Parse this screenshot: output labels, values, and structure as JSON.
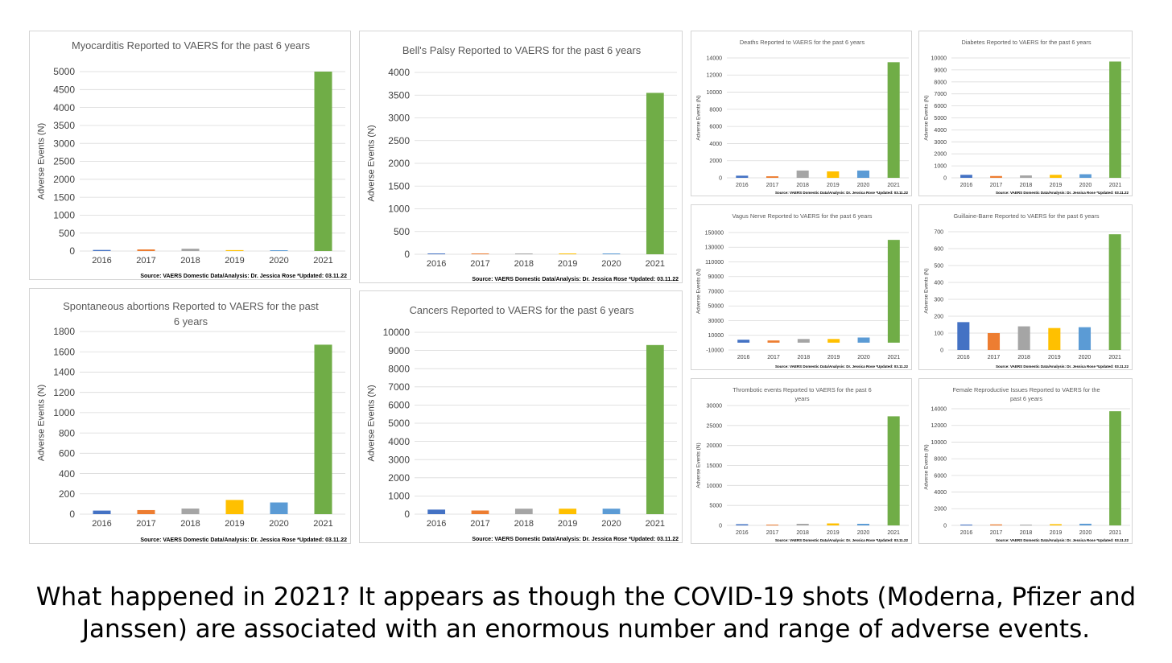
{
  "caption": {
    "line1": "What happened in 2021? It appears as though the COVID-19 shots (Moderna, Pfizer and",
    "line2": "Janssen) are associated with an enormous number and range of adverse events."
  },
  "series_colors": [
    "#4472C4",
    "#ED7D31",
    "#A5A5A5",
    "#FFC000",
    "#5B9BD5",
    "#70AD47"
  ],
  "chart_data": [
    {
      "id": "myocarditis",
      "type": "bar",
      "title_lines": [
        "Myocarditis Reported to VAERS for the past 6 years"
      ],
      "ylabel": "Adverse Events (N)",
      "categories": [
        "2016",
        "2017",
        "2018",
        "2019",
        "2020",
        "2021"
      ],
      "values": [
        30,
        45,
        65,
        25,
        20,
        5000
      ],
      "ylim": [
        0,
        5000
      ],
      "yticks": [
        0,
        500,
        1000,
        1500,
        2000,
        2500,
        3000,
        3500,
        4000,
        4500,
        5000
      ],
      "grid": true,
      "source": "Source: VAERS Domestic Data/Analysis: Dr. Jessica Rose *Updated: 03.11.22"
    },
    {
      "id": "bells-palsy",
      "type": "bar",
      "title_lines": [
        "Bell's Palsy Reported to VAERS for the past 6 years"
      ],
      "ylabel": "Adverse Events (N)",
      "categories": [
        "2016",
        "2017",
        "2018",
        "2019",
        "2020",
        "2021"
      ],
      "values": [
        2,
        2,
        2,
        2,
        5,
        3550
      ],
      "ylim": [
        0,
        4000
      ],
      "yticks": [
        0,
        500,
        1000,
        1500,
        2000,
        2500,
        3000,
        3500,
        4000
      ],
      "grid": true,
      "source": "Source: VAERS Domestic Data/Analysis: Dr. Jessica Rose *Updated: 03.11.22"
    },
    {
      "id": "deaths",
      "type": "bar",
      "title_lines": [
        "Deaths Reported to VAERS for the past 6 years"
      ],
      "ylabel": "Adverse Events (N)",
      "categories": [
        "2016",
        "2017",
        "2018",
        "2019",
        "2020",
        "2021"
      ],
      "values": [
        250,
        180,
        850,
        750,
        850,
        13500
      ],
      "ylim": [
        0,
        14000
      ],
      "yticks": [
        0,
        2000,
        4000,
        6000,
        8000,
        10000,
        12000,
        14000
      ],
      "grid": true,
      "source": "Source: VAERS Domestic Data/Analysis: Dr. Jessica Rose *Updated: 03.11.22"
    },
    {
      "id": "diabetes",
      "type": "bar",
      "title_lines": [
        "Diabetes Reported to VAERS for the past 6 years"
      ],
      "ylabel": "Adverse Events (N)",
      "categories": [
        "2016",
        "2017",
        "2018",
        "2019",
        "2020",
        "2021"
      ],
      "values": [
        250,
        150,
        200,
        250,
        300,
        9700
      ],
      "ylim": [
        0,
        10000
      ],
      "yticks": [
        0,
        1000,
        2000,
        3000,
        4000,
        5000,
        6000,
        7000,
        8000,
        9000,
        10000
      ],
      "grid": true,
      "source": "Source: VAERS Domestic Data/Analysis: Dr. Jessica Rose *Updated: 03.11.22"
    },
    {
      "id": "vagus-nerve",
      "type": "bar",
      "title_lines": [
        "Vagus Nerve Reported to VAERS for the past 6 years"
      ],
      "ylabel": "Adverse Events (N)",
      "categories": [
        "2016",
        "2017",
        "2018",
        "2019",
        "2020",
        "2021"
      ],
      "values": [
        4000,
        3000,
        5000,
        5000,
        7000,
        140000
      ],
      "ylim": [
        -10000,
        150000
      ],
      "yticks": [
        -10000,
        10000,
        30000,
        50000,
        70000,
        90000,
        110000,
        130000,
        150000
      ],
      "grid": true,
      "source": "Source: VAERS Domestic Data/Analysis: Dr. Jessica Rose *Updated: 03.11.22"
    },
    {
      "id": "guillaine-barre",
      "type": "bar",
      "title_lines": [
        "Guillaine-Barre Reported to VAERS for the past 6 years"
      ],
      "ylabel": "Adverse Events (N)",
      "categories": [
        "2016",
        "2017",
        "2018",
        "2019",
        "2020",
        "2021"
      ],
      "values": [
        165,
        100,
        140,
        130,
        135,
        685
      ],
      "ylim": [
        0,
        700
      ],
      "yticks": [
        0,
        100,
        200,
        300,
        400,
        500,
        600,
        700
      ],
      "grid": true,
      "source": "Source: VAERS Domestic Data/Analysis: Dr. Jessica Rose *Updated: 03.11.22"
    },
    {
      "id": "spontaneous-abortions",
      "type": "bar",
      "title_lines": [
        "Spontaneous abortions Reported to VAERS for the past",
        "6 years"
      ],
      "ylabel": "Adverse Events (N)",
      "categories": [
        "2016",
        "2017",
        "2018",
        "2019",
        "2020",
        "2021"
      ],
      "values": [
        35,
        40,
        55,
        140,
        115,
        1670
      ],
      "ylim": [
        0,
        1800
      ],
      "yticks": [
        0,
        200,
        400,
        600,
        800,
        1000,
        1200,
        1400,
        1600,
        1800
      ],
      "grid": true,
      "source": "Source: VAERS Domestic Data/Analysis: Dr. Jessica Rose *Updated: 03.11.22"
    },
    {
      "id": "cancers",
      "type": "bar",
      "title_lines": [
        "Cancers Reported to VAERS for the past 6 years"
      ],
      "ylabel": "Adverse Events (N)",
      "categories": [
        "2016",
        "2017",
        "2018",
        "2019",
        "2020",
        "2021"
      ],
      "values": [
        250,
        200,
        300,
        300,
        300,
        9300
      ],
      "ylim": [
        0,
        10000
      ],
      "yticks": [
        0,
        1000,
        2000,
        3000,
        4000,
        5000,
        6000,
        7000,
        8000,
        9000,
        10000
      ],
      "grid": true,
      "source": "Source: VAERS Domestic Data/Analysis: Dr. Jessica Rose *Updated: 03.11.22"
    },
    {
      "id": "thrombotic-events",
      "type": "bar",
      "title_lines": [
        "Thrombotic events Reported to VAERS for the past 6",
        "years"
      ],
      "ylabel": "Adverse Events (N)",
      "categories": [
        "2016",
        "2017",
        "2018",
        "2019",
        "2020",
        "2021"
      ],
      "values": [
        300,
        200,
        400,
        500,
        400,
        27300
      ],
      "ylim": [
        0,
        30000
      ],
      "yticks": [
        0,
        5000,
        10000,
        15000,
        20000,
        25000,
        30000
      ],
      "grid": true,
      "source": "Source: VAERS Domestic Data/Analysis: Dr. Jessica Rose *Updated: 03.11.22"
    },
    {
      "id": "female-reproductive-issues",
      "type": "bar",
      "title_lines": [
        "Female Reproductive Issues Reported to VAERS for the",
        "past 6 years"
      ],
      "ylabel": "Adverse Events (N)",
      "categories": [
        "2016",
        "2017",
        "2018",
        "2019",
        "2020",
        "2021"
      ],
      "values": [
        100,
        120,
        80,
        150,
        200,
        13700
      ],
      "ylim": [
        0,
        14000
      ],
      "yticks": [
        0,
        2000,
        4000,
        6000,
        8000,
        10000,
        12000,
        14000
      ],
      "grid": true,
      "source": "Source: VAERS Domestic Data/Analysis: Dr. Jessica Rose *Updated: 03.11.22"
    }
  ]
}
